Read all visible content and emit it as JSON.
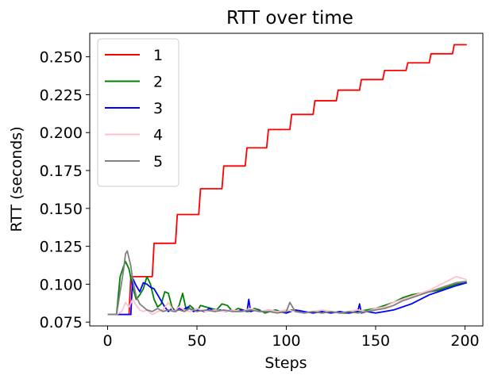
{
  "chart_data": {
    "type": "line",
    "title": "RTT over time",
    "xlabel": "Steps",
    "ylabel": "RTT (seconds)",
    "xlim": [
      -10,
      210
    ],
    "ylim": [
      0.0725,
      0.2655
    ],
    "xticks": [
      0,
      50,
      100,
      150,
      200
    ],
    "xtick_labels": [
      "0",
      "50",
      "100",
      "150",
      "200"
    ],
    "yticks": [
      0.075,
      0.1,
      0.125,
      0.15,
      0.175,
      0.2,
      0.225,
      0.25
    ],
    "ytick_labels": [
      "0.075",
      "0.100",
      "0.125",
      "0.150",
      "0.175",
      "0.200",
      "0.225",
      "0.250"
    ],
    "grid": false,
    "legend_position": "top-left",
    "series": [
      {
        "name": "1",
        "color": "#ff0000",
        "x": [
          0,
          5,
          10,
          12,
          13,
          25,
          26,
          38,
          39,
          51,
          52,
          64,
          65,
          77,
          78,
          89,
          90,
          102,
          103,
          115,
          116,
          128,
          129,
          141,
          142,
          154,
          155,
          167,
          168,
          180,
          181,
          193,
          194,
          201
        ],
        "y": [
          0.08,
          0.08,
          0.08,
          0.08,
          0.105,
          0.105,
          0.127,
          0.127,
          0.146,
          0.146,
          0.163,
          0.163,
          0.178,
          0.178,
          0.19,
          0.19,
          0.202,
          0.202,
          0.212,
          0.212,
          0.221,
          0.221,
          0.228,
          0.228,
          0.235,
          0.235,
          0.241,
          0.241,
          0.246,
          0.246,
          0.252,
          0.252,
          0.258,
          0.258
        ]
      },
      {
        "name": "2",
        "color": "#008000",
        "x": [
          0,
          5,
          7,
          9,
          10,
          12,
          14,
          16,
          18,
          20,
          22,
          24,
          26,
          28,
          30,
          32,
          34,
          36,
          38,
          40,
          42,
          44,
          46,
          48,
          50,
          52,
          55,
          58,
          61,
          64,
          67,
          70,
          73,
          76,
          79,
          82,
          85,
          88,
          91,
          94,
          97,
          100,
          103,
          106,
          110,
          115,
          120,
          125,
          130,
          135,
          140,
          145,
          150,
          155,
          160,
          165,
          170,
          175,
          180,
          185,
          190,
          195,
          201
        ],
        "y": [
          0.08,
          0.08,
          0.105,
          0.112,
          0.115,
          0.11,
          0.098,
          0.09,
          0.093,
          0.097,
          0.105,
          0.1,
          0.09,
          0.085,
          0.087,
          0.095,
          0.094,
          0.085,
          0.082,
          0.086,
          0.094,
          0.083,
          0.086,
          0.084,
          0.082,
          0.086,
          0.085,
          0.084,
          0.083,
          0.087,
          0.086,
          0.082,
          0.084,
          0.083,
          0.082,
          0.084,
          0.083,
          0.081,
          0.082,
          0.083,
          0.082,
          0.081,
          0.083,
          0.082,
          0.081,
          0.082,
          0.081,
          0.082,
          0.081,
          0.081,
          0.082,
          0.083,
          0.084,
          0.086,
          0.088,
          0.091,
          0.093,
          0.094,
          0.095,
          0.096,
          0.098,
          0.1,
          0.101
        ]
      },
      {
        "name": "3",
        "color": "#0000ff",
        "x": [
          0,
          10,
          13,
          14,
          16,
          18,
          20,
          22,
          24,
          26,
          28,
          30,
          32,
          34,
          36,
          38,
          40,
          42,
          45,
          48,
          51,
          54,
          57,
          60,
          63,
          66,
          69,
          72,
          75,
          78,
          79,
          80,
          83,
          86,
          90,
          95,
          100,
          105,
          110,
          115,
          120,
          125,
          130,
          135,
          140,
          141,
          142,
          145,
          150,
          155,
          160,
          165,
          170,
          175,
          180,
          185,
          190,
          195,
          201
        ],
        "y": [
          0.08,
          0.08,
          0.08,
          0.104,
          0.099,
          0.095,
          0.101,
          0.1,
          0.098,
          0.097,
          0.093,
          0.089,
          0.085,
          0.082,
          0.084,
          0.082,
          0.084,
          0.083,
          0.085,
          0.082,
          0.083,
          0.082,
          0.084,
          0.082,
          0.083,
          0.082,
          0.083,
          0.082,
          0.083,
          0.082,
          0.09,
          0.082,
          0.083,
          0.082,
          0.083,
          0.082,
          0.081,
          0.083,
          0.082,
          0.081,
          0.082,
          0.081,
          0.082,
          0.081,
          0.082,
          0.087,
          0.081,
          0.082,
          0.081,
          0.082,
          0.083,
          0.085,
          0.087,
          0.09,
          0.093,
          0.095,
          0.097,
          0.099,
          0.101
        ]
      },
      {
        "name": "4",
        "color": "#ffc0cb",
        "x": [
          0,
          5,
          8,
          10,
          12,
          14,
          16,
          18,
          20,
          22,
          25,
          28,
          31,
          34,
          37,
          40,
          43,
          46,
          50,
          55,
          60,
          65,
          70,
          75,
          80,
          85,
          90,
          95,
          100,
          105,
          110,
          115,
          120,
          125,
          130,
          135,
          140,
          145,
          150,
          155,
          160,
          165,
          170,
          175,
          180,
          185,
          190,
          195,
          201
        ],
        "y": [
          0.08,
          0.08,
          0.082,
          0.088,
          0.085,
          0.09,
          0.086,
          0.083,
          0.082,
          0.083,
          0.08,
          0.082,
          0.083,
          0.088,
          0.082,
          0.085,
          0.083,
          0.082,
          0.084,
          0.082,
          0.083,
          0.082,
          0.083,
          0.082,
          0.084,
          0.082,
          0.083,
          0.082,
          0.083,
          0.082,
          0.081,
          0.082,
          0.083,
          0.082,
          0.081,
          0.082,
          0.083,
          0.082,
          0.084,
          0.085,
          0.088,
          0.09,
          0.092,
          0.094,
          0.096,
          0.099,
          0.102,
          0.105,
          0.103
        ]
      },
      {
        "name": "5",
        "color": "#808080",
        "x": [
          0,
          5,
          7,
          9,
          10,
          11,
          13,
          14,
          16,
          18,
          20,
          22,
          25,
          28,
          31,
          34,
          37,
          40,
          43,
          46,
          50,
          55,
          60,
          65,
          70,
          75,
          80,
          85,
          90,
          95,
          100,
          102,
          105,
          110,
          115,
          120,
          125,
          130,
          135,
          140,
          145,
          150,
          155,
          160,
          165,
          170,
          175,
          180,
          185,
          190,
          195,
          201
        ],
        "y": [
          0.08,
          0.08,
          0.095,
          0.11,
          0.12,
          0.122,
          0.112,
          0.103,
          0.092,
          0.087,
          0.085,
          0.083,
          0.082,
          0.084,
          0.082,
          0.083,
          0.082,
          0.083,
          0.082,
          0.084,
          0.082,
          0.083,
          0.082,
          0.083,
          0.082,
          0.082,
          0.083,
          0.082,
          0.082,
          0.081,
          0.082,
          0.088,
          0.082,
          0.081,
          0.082,
          0.081,
          0.082,
          0.081,
          0.082,
          0.081,
          0.082,
          0.083,
          0.084,
          0.086,
          0.089,
          0.091,
          0.093,
          0.095,
          0.097,
          0.099,
          0.101,
          0.102
        ]
      }
    ]
  }
}
